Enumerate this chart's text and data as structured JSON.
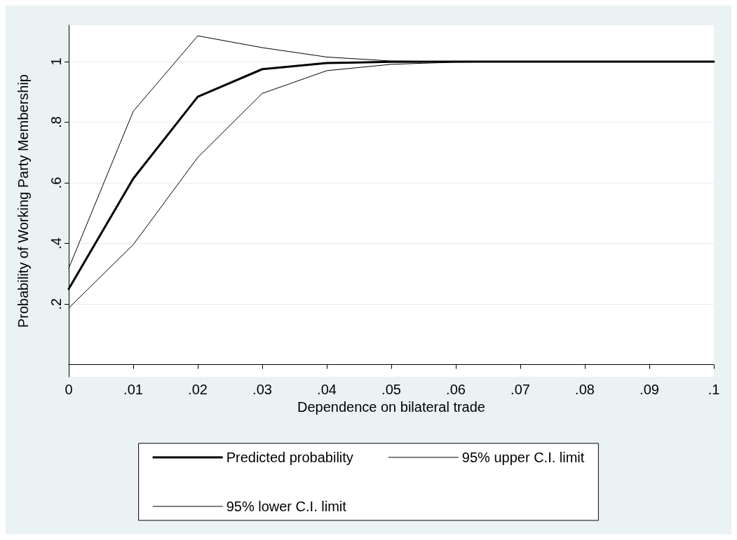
{
  "chart_data": {
    "type": "line",
    "xlabel": "Dependence on bilateral trade",
    "ylabel": "Probability of Working Party Membership",
    "x": [
      0,
      0.01,
      0.02,
      0.03,
      0.04,
      0.05,
      0.06,
      0.07,
      0.08,
      0.09,
      0.1
    ],
    "series": [
      {
        "name": "Predicted probability",
        "color": "#000000",
        "values": [
          0.25,
          0.614,
          0.884,
          0.975,
          0.995,
          0.999,
          1,
          1,
          1,
          1,
          1
        ]
      },
      {
        "name": "95% upper C.I. limit",
        "color": "#000000",
        "values": [
          0.318,
          0.836,
          1.085,
          1.046,
          1.015,
          1.002,
          1,
          1,
          1,
          1,
          1
        ]
      },
      {
        "name": "95% lower C.I. limit",
        "color": "#000000",
        "values": [
          0.187,
          0.396,
          0.684,
          0.895,
          0.97,
          0.991,
          0.998,
          1,
          1,
          1,
          1
        ]
      }
    ],
    "xlim": [
      0,
      0.1
    ],
    "xticks": [
      0,
      {
        "value": 0.01,
        "label": ".01"
      },
      {
        "value": 0.02,
        "label": ".02"
      },
      {
        "value": 0.03,
        "label": ".03"
      },
      {
        "value": 0.04,
        "label": ".04"
      },
      {
        "value": 0.05,
        "label": ".05"
      },
      {
        "value": 0.06,
        "label": ".06"
      },
      {
        "value": 0.07,
        "label": ".07"
      },
      {
        "value": 0.08,
        "label": ".08"
      },
      {
        "value": 0.09,
        "label": ".09"
      },
      {
        "value": 0.1,
        "label": ".1"
      }
    ],
    "ylim": [
      -0.04,
      1.12
    ],
    "yticks": [
      {
        "value": 0.2,
        "label": ".2"
      },
      {
        "value": 0.4,
        "label": ".4"
      },
      {
        "value": 0.6,
        "label": ".6"
      },
      {
        "value": 0.8,
        "label": ".8"
      },
      1
    ],
    "grid": "y",
    "legend": "bottom",
    "marker": "none",
    "line_style": "solid"
  }
}
